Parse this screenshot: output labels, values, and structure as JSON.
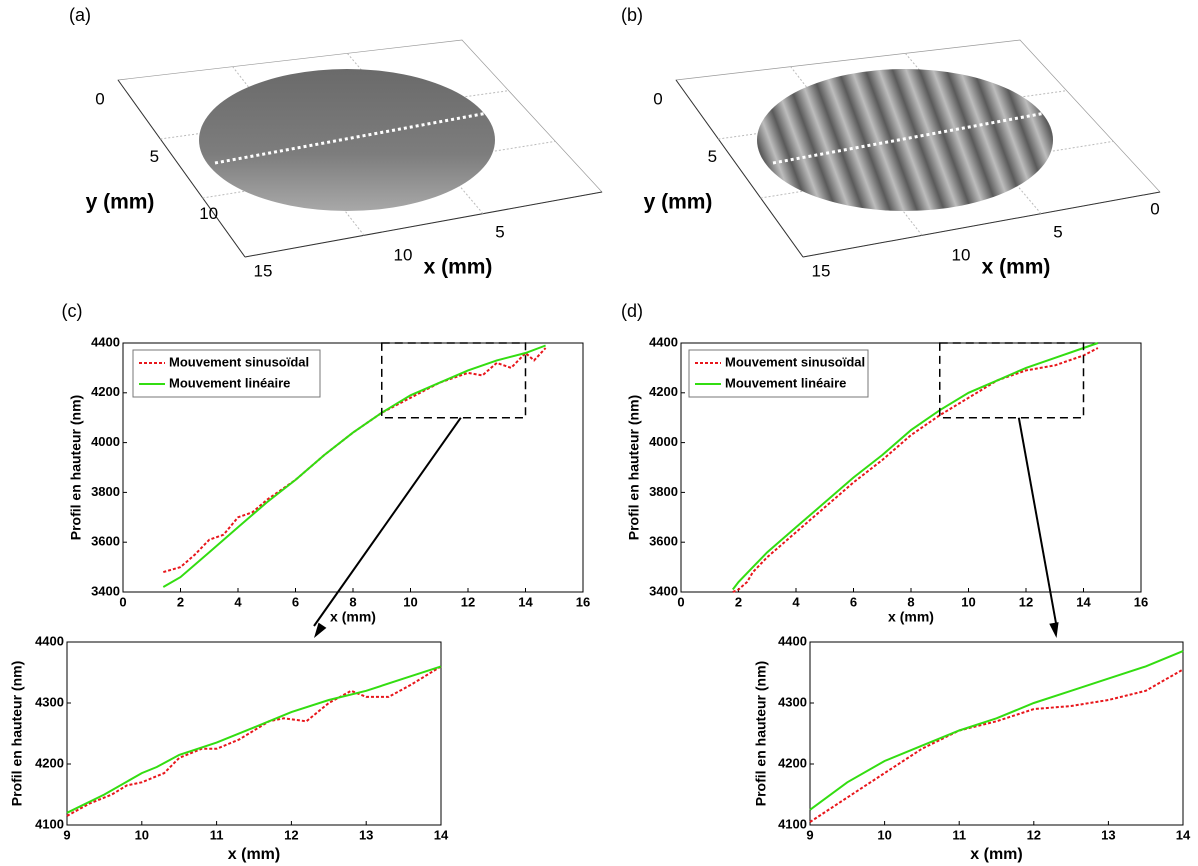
{
  "chart_data": [
    {
      "type": "surface",
      "panel_label": "(a)",
      "xlabel": "x (mm)",
      "ylabel": "y (mm)",
      "xlim": [
        0,
        15
      ],
      "ylim": [
        0,
        15
      ],
      "xticks": [
        5,
        10
      ],
      "yticks": [
        0,
        5,
        10,
        15
      ],
      "striped": false
    },
    {
      "type": "surface",
      "panel_label": "(b)",
      "xlabel": "x (mm)",
      "ylabel": "y (mm)",
      "xlim": [
        0,
        15
      ],
      "ylim": [
        0,
        15
      ],
      "xticks": [
        0,
        5,
        10
      ],
      "yticks": [
        0,
        5,
        15
      ],
      "striped": true
    },
    {
      "type": "line",
      "panel_label": "(c)",
      "xlabel": "x (mm)",
      "ylabel": "Profil en hauteur (nm)",
      "xlim": [
        0,
        16
      ],
      "ylim": [
        3400,
        4400
      ],
      "xticks": [
        0,
        2,
        4,
        6,
        8,
        10,
        12,
        14,
        16
      ],
      "yticks": [
        3400,
        3600,
        3800,
        4000,
        4200,
        4400
      ],
      "legend": "upper left",
      "series": [
        {
          "name": "Mouvement sinusoïdal",
          "color": "#e8161b",
          "linestyle": "dashed",
          "x": [
            1.4,
            2,
            2.5,
            3,
            3.5,
            4,
            4.5,
            5,
            6,
            7,
            8,
            9,
            10,
            11,
            12,
            12.5,
            13,
            13.5,
            14,
            14.3,
            14.7
          ],
          "values": [
            3480,
            3500,
            3550,
            3610,
            3630,
            3700,
            3720,
            3770,
            3850,
            3950,
            4040,
            4120,
            4180,
            4240,
            4280,
            4270,
            4320,
            4300,
            4360,
            4330,
            4380
          ]
        },
        {
          "name": "Mouvement linéaire",
          "color": "#33dd11",
          "linestyle": "solid",
          "x": [
            1.4,
            2,
            3,
            4,
            5,
            6,
            7,
            8,
            9,
            10,
            11,
            12,
            13,
            14,
            14.7
          ],
          "values": [
            3420,
            3460,
            3560,
            3660,
            3760,
            3850,
            3950,
            4040,
            4120,
            4190,
            4240,
            4290,
            4330,
            4360,
            4390
          ]
        }
      ]
    },
    {
      "type": "line",
      "panel_label": "(d)",
      "xlabel": "x (mm)",
      "ylabel": "Profil en hauteur (nm)",
      "xlim": [
        0,
        16
      ],
      "ylim": [
        3400,
        4400
      ],
      "xticks": [
        0,
        2,
        4,
        6,
        8,
        10,
        12,
        14,
        16
      ],
      "yticks": [
        3400,
        3600,
        3800,
        4000,
        4200,
        4400
      ],
      "legend": "upper left",
      "series": [
        {
          "name": "Mouvement sinusoïdal",
          "color": "#e8161b",
          "linestyle": "dashed",
          "x": [
            1.8,
            2,
            2.3,
            2.5,
            3,
            4,
            5,
            6,
            7,
            8,
            9,
            10,
            11,
            12,
            13,
            14,
            14.5
          ],
          "values": [
            3400,
            3410,
            3440,
            3480,
            3540,
            3640,
            3740,
            3840,
            3930,
            4030,
            4110,
            4180,
            4250,
            4290,
            4310,
            4350,
            4380
          ]
        },
        {
          "name": "Mouvement linéaire",
          "color": "#33dd11",
          "linestyle": "solid",
          "x": [
            1.8,
            2,
            2.5,
            3,
            4,
            5,
            6,
            7,
            8,
            9,
            10,
            11,
            12,
            13,
            14,
            14.5
          ],
          "values": [
            3410,
            3440,
            3500,
            3560,
            3660,
            3760,
            3860,
            3950,
            4050,
            4130,
            4200,
            4250,
            4300,
            4340,
            4380,
            4400
          ]
        }
      ]
    },
    {
      "type": "line",
      "xlabel": "x (mm)",
      "ylabel": "Profil en hauteur (nm)",
      "xlim": [
        9,
        14
      ],
      "ylim": [
        4100,
        4400
      ],
      "xticks": [
        9,
        10,
        11,
        12,
        13,
        14
      ],
      "yticks": [
        4100,
        4200,
        4300,
        4400
      ],
      "series": [
        {
          "color": "#e8161b",
          "linestyle": "dashed",
          "x": [
            9,
            9.3,
            9.6,
            9.8,
            10,
            10.3,
            10.5,
            10.8,
            11,
            11.3,
            11.7,
            11.9,
            12.2,
            12.5,
            12.8,
            13,
            13.3,
            13.6,
            14
          ],
          "values": [
            4115,
            4135,
            4150,
            4165,
            4170,
            4185,
            4210,
            4225,
            4225,
            4240,
            4270,
            4275,
            4270,
            4300,
            4320,
            4310,
            4310,
            4330,
            4360
          ]
        },
        {
          "color": "#33dd11",
          "linestyle": "solid",
          "x": [
            9,
            9.5,
            10,
            10.2,
            10.5,
            11,
            11.5,
            12,
            12.5,
            13,
            13.5,
            14
          ],
          "values": [
            4120,
            4150,
            4185,
            4195,
            4215,
            4235,
            4260,
            4285,
            4305,
            4320,
            4340,
            4360
          ]
        }
      ]
    },
    {
      "type": "line",
      "xlabel": "x (mm)",
      "ylabel": "Profil en hauteur (nm)",
      "xlim": [
        9,
        14
      ],
      "ylim": [
        4100,
        4400
      ],
      "xticks": [
        9,
        10,
        11,
        12,
        13,
        14
      ],
      "yticks": [
        4100,
        4200,
        4300,
        4400
      ],
      "series": [
        {
          "color": "#e8161b",
          "linestyle": "dashed",
          "x": [
            9,
            9.5,
            10,
            10.5,
            11,
            11.5,
            12,
            12.5,
            13,
            13.5,
            14
          ],
          "values": [
            4105,
            4145,
            4185,
            4225,
            4255,
            4270,
            4290,
            4295,
            4305,
            4320,
            4355
          ]
        },
        {
          "color": "#33dd11",
          "linestyle": "solid",
          "x": [
            9,
            9.5,
            10,
            10.5,
            11,
            11.5,
            12,
            12.5,
            13,
            13.5,
            14
          ],
          "values": [
            4125,
            4170,
            4205,
            4230,
            4255,
            4275,
            4300,
            4320,
            4340,
            4360,
            4385
          ]
        }
      ]
    }
  ]
}
